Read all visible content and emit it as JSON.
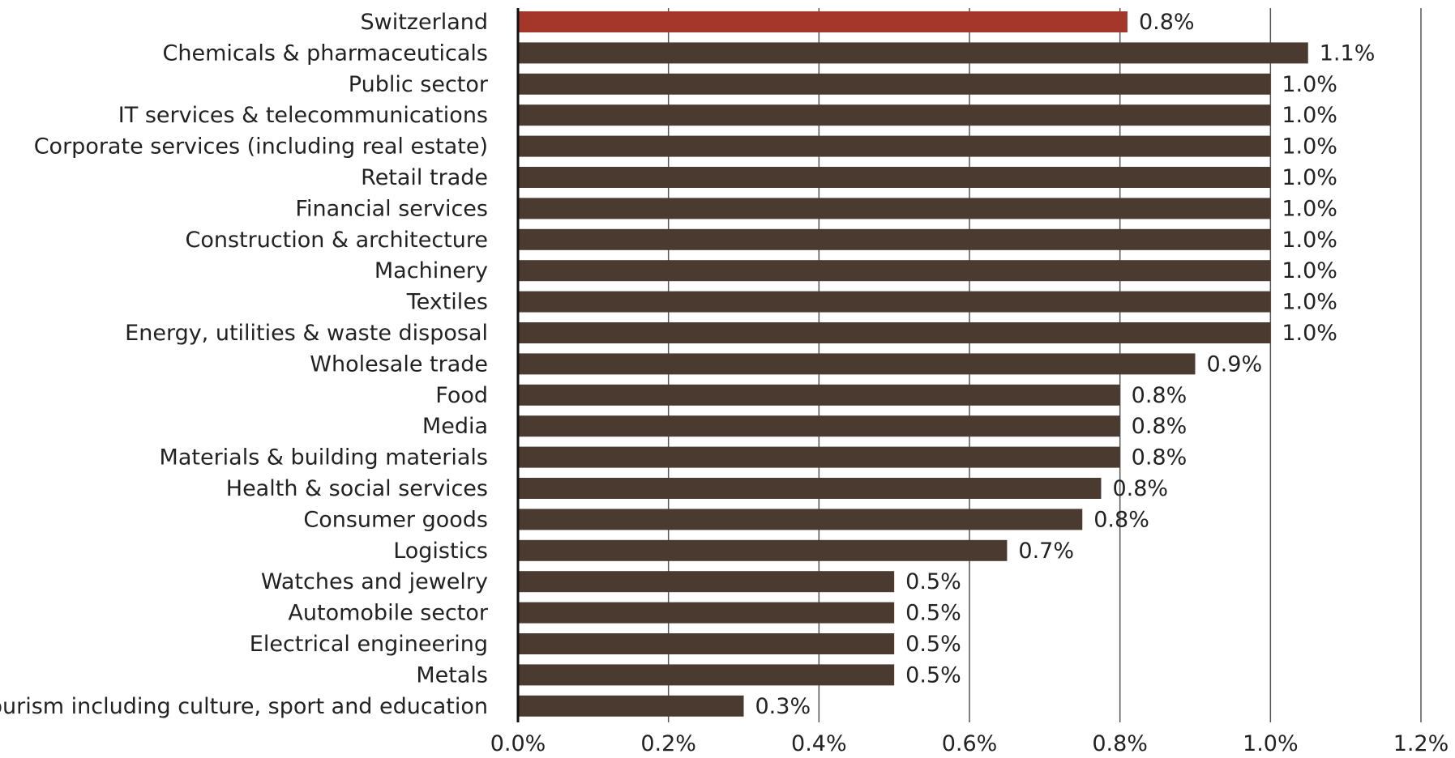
{
  "chart_data": {
    "type": "bar",
    "orientation": "horizontal",
    "title": "",
    "xlabel": "",
    "ylabel": "",
    "xlim": [
      0,
      1.2
    ],
    "x_ticks": [
      0.0,
      0.2,
      0.4,
      0.6,
      0.8,
      1.0,
      1.2
    ],
    "x_tick_labels": [
      "0.0%",
      "0.2%",
      "0.4%",
      "0.6%",
      "0.8%",
      "1.0%",
      "1.2%"
    ],
    "grid": "vertical",
    "legend": "none",
    "colors": {
      "highlight": "#A5362A",
      "default": "#4B3A30"
    },
    "categories": [
      "Switzerland",
      "Chemicals & pharmaceuticals",
      "Public sector",
      "IT services & telecommunications",
      "Corporate services (including real estate)",
      "Retail trade",
      "Financial services",
      "Construction & architecture",
      "Machinery",
      "Textiles",
      "Energy, utilities & waste disposal",
      "Wholesale trade",
      "Food",
      "Media",
      "Materials & building materials",
      "Health & social services",
      "Consumer goods",
      "Logistics",
      "Watches and jewelry",
      "Automobile sector",
      "Electrical engineering",
      "Metals",
      "Tourism including culture, sport and education"
    ],
    "values": [
      0.81,
      1.05,
      1.0,
      1.0,
      1.0,
      1.0,
      1.0,
      1.0,
      1.0,
      1.0,
      1.0,
      0.9,
      0.8,
      0.8,
      0.8,
      0.775,
      0.75,
      0.65,
      0.5,
      0.5,
      0.5,
      0.5,
      0.3
    ],
    "data_labels": [
      "0.8%",
      "1.1%",
      "1.0%",
      "1.0%",
      "1.0%",
      "1.0%",
      "1.0%",
      "1.0%",
      "1.0%",
      "1.0%",
      "1.0%",
      "0.9%",
      "0.8%",
      "0.8%",
      "0.8%",
      "0.8%",
      "0.8%",
      "0.7%",
      "0.5%",
      "0.5%",
      "0.5%",
      "0.5%",
      "0.3%"
    ],
    "highlight_category": "Switzerland"
  }
}
